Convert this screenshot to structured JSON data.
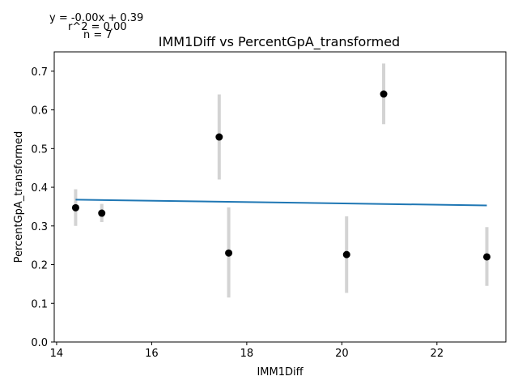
{
  "chart_data": {
    "type": "scatter",
    "title": "IMM1Diff vs PercentGpA_transformed",
    "xlabel": "IMM1Diff",
    "ylabel": "PercentGpA_transformed",
    "xlim": [
      13.95,
      23.45
    ],
    "ylim": [
      0.0,
      0.75
    ],
    "xticks": [
      "14",
      "16",
      "18",
      "20",
      "22"
    ],
    "yticks": [
      "0.0",
      "0.1",
      "0.2",
      "0.3",
      "0.4",
      "0.5",
      "0.6",
      "0.7"
    ],
    "annotations": [
      "y = -0.00x + 0.39",
      "r^2 = 0.00",
      "n = 7"
    ],
    "points": [
      {
        "x": 14.4,
        "y": 0.347,
        "err_low": 0.3,
        "err_high": 0.395
      },
      {
        "x": 14.95,
        "y": 0.333,
        "err_low": 0.31,
        "err_high": 0.357
      },
      {
        "x": 17.42,
        "y": 0.53,
        "err_low": 0.42,
        "err_high": 0.64
      },
      {
        "x": 17.62,
        "y": 0.23,
        "err_low": 0.115,
        "err_high": 0.348
      },
      {
        "x": 20.1,
        "y": 0.226,
        "err_low": 0.127,
        "err_high": 0.325
      },
      {
        "x": 20.88,
        "y": 0.641,
        "err_low": 0.563,
        "err_high": 0.72
      },
      {
        "x": 23.05,
        "y": 0.22,
        "err_low": 0.145,
        "err_high": 0.297
      }
    ],
    "fit_line": {
      "x": [
        14.4,
        23.05
      ],
      "y": [
        0.368,
        0.353
      ]
    },
    "grid": false,
    "colors": {
      "points": "#000000",
      "error_bars": "#d3d3d3",
      "fit_line": "#1f77b4"
    }
  }
}
